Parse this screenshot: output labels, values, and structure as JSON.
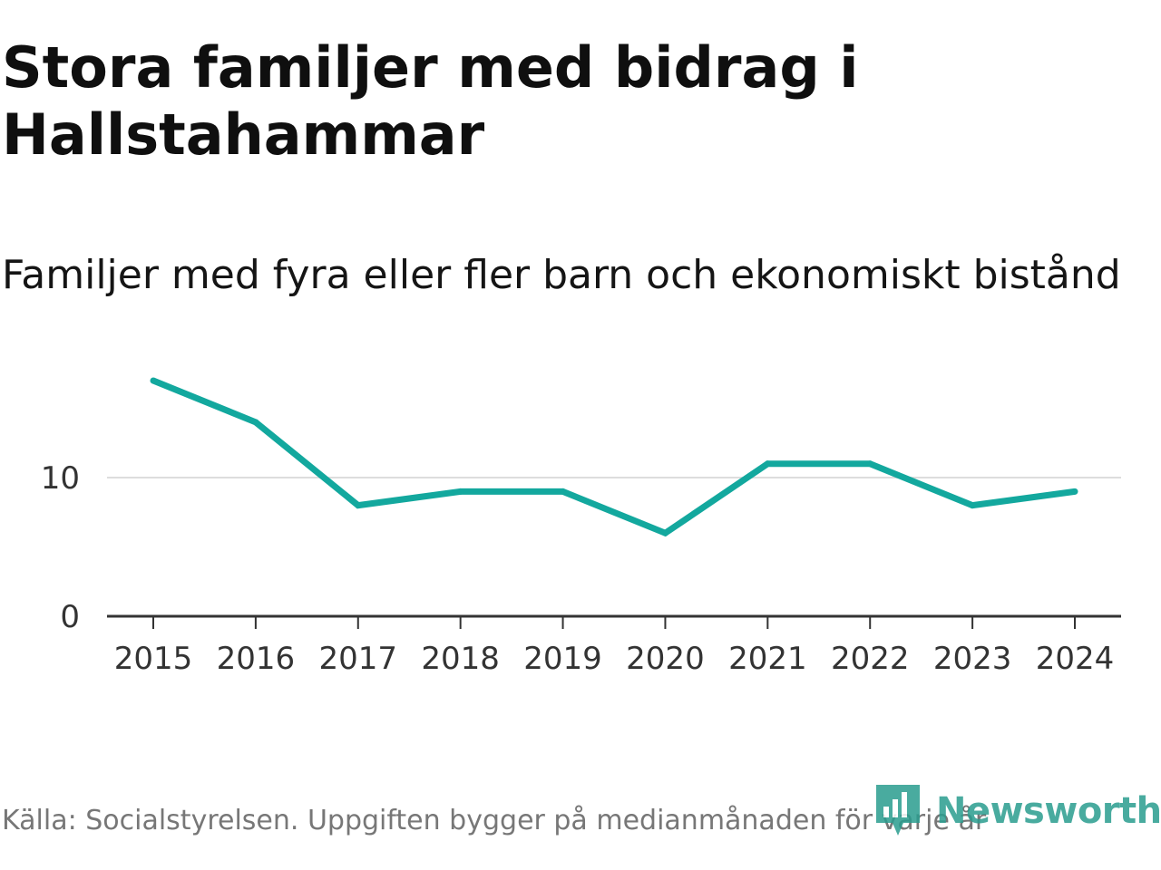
{
  "title": "Stora familjer med bidrag i Hallstahammar",
  "subtitle": "Familjer med fyra eller fler barn och ekonomiskt bistånd",
  "source": "Källa: Socialstyrelsen. Uppgiften bygger på medianmånaden för varje år",
  "brand": "Newsworthy",
  "colors": {
    "line": "#13a89e",
    "grid": "#dddddd",
    "axis": "#333333",
    "brand": "#2a9d8f"
  },
  "chart_data": {
    "type": "line",
    "title": "Stora familjer med bidrag i Hallstahammar",
    "subtitle": "Familjer med fyra eller fler barn och ekonomiskt bistånd",
    "categories": [
      "2015",
      "2016",
      "2017",
      "2018",
      "2019",
      "2020",
      "2021",
      "2022",
      "2023",
      "2024"
    ],
    "series": [
      {
        "name": "Familjer med fyra eller fler barn och ekonomiskt bistånd",
        "values": [
          17,
          14,
          8,
          9,
          9,
          6,
          11,
          11,
          8,
          9
        ]
      }
    ],
    "xlabel": "",
    "ylabel": "",
    "ylim": [
      0,
      17
    ],
    "yticks": [
      0,
      10
    ],
    "grid": true,
    "legend": "none"
  }
}
